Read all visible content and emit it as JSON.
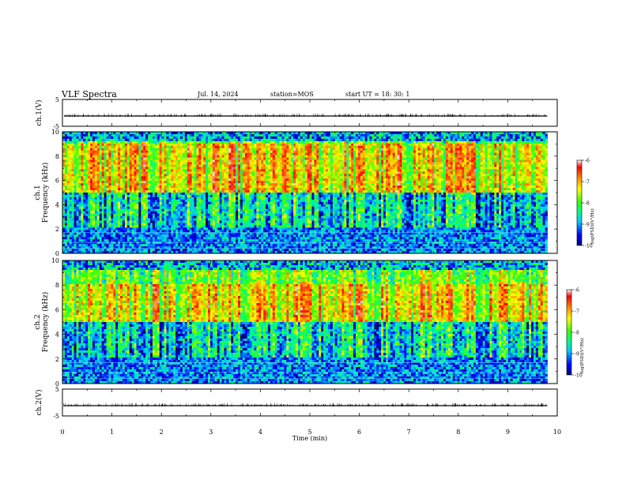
{
  "header": {
    "title": "VLF Spectra",
    "date": "Jul. 14, 2024",
    "station": "station=MOS",
    "start": "start UT =  18: 30: 1"
  },
  "chart_data": [
    {
      "type": "line",
      "panel": "ch1-waveform",
      "ylabel": "ch.1(V)",
      "ylim": [
        -5,
        5
      ],
      "yticks": [
        5,
        -5
      ],
      "xlim": [
        0,
        10
      ],
      "series": [
        {
          "x": [
            0,
            9.8
          ],
          "values": [
            0,
            0
          ]
        }
      ],
      "color": "#000000"
    },
    {
      "type": "heatmap",
      "panel": "ch1-spectrogram",
      "ylabel": "ch.1\nFrequency (kHz)",
      "ylim": [
        0,
        10
      ],
      "yticks": [
        0,
        2,
        4,
        6,
        8,
        10
      ],
      "xlim": [
        0,
        10
      ],
      "data_end_min": 9.8,
      "colorbar": {
        "label": "log(PSD)(V²/Hz)",
        "range": [
          -10,
          -6
        ],
        "ticks": [
          -6,
          -7,
          -8,
          -9,
          -10
        ]
      },
      "intense_band_khz": [
        5,
        9
      ]
    },
    {
      "type": "heatmap",
      "panel": "ch2-spectrogram",
      "ylabel": "ch.2\nFrequency (kHz)",
      "ylim": [
        0,
        10
      ],
      "yticks": [
        0,
        2,
        4,
        6,
        8,
        10
      ],
      "xlim": [
        0,
        10
      ],
      "data_end_min": 9.8,
      "colorbar": {
        "label": "log(PSD)(V²/Hz)",
        "range": [
          -10,
          -6
        ],
        "ticks": [
          -6,
          -7,
          -8,
          -9,
          -10
        ]
      },
      "intense_band_khz": [
        5,
        8
      ]
    },
    {
      "type": "line",
      "panel": "ch2-waveform",
      "ylabel": "ch.2(V)",
      "ylim": [
        -5,
        5
      ],
      "yticks": [
        5,
        -5
      ],
      "xlim": [
        0,
        10
      ],
      "xlabel": "Time (min)",
      "xticks": [
        0,
        1,
        2,
        3,
        4,
        5,
        6,
        7,
        8,
        9,
        10
      ],
      "series": [
        {
          "x": [
            0,
            9.8
          ],
          "values": [
            0,
            0
          ]
        }
      ],
      "color": "#000000"
    }
  ]
}
